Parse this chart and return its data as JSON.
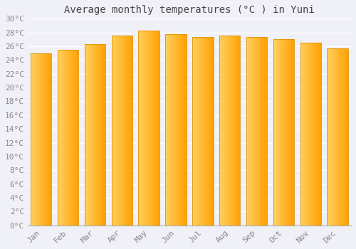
{
  "title": "Average monthly temperatures (°C ) in Yuni",
  "months": [
    "Jan",
    "Feb",
    "Mar",
    "Apr",
    "May",
    "Jun",
    "Jul",
    "Aug",
    "Sep",
    "Oct",
    "Nov",
    "Dec"
  ],
  "values": [
    25.0,
    25.5,
    26.3,
    27.5,
    28.3,
    27.8,
    27.3,
    27.5,
    27.3,
    27.0,
    26.5,
    25.7
  ],
  "bar_color_left": "#FFD060",
  "bar_color_right": "#FFA000",
  "bar_edge_color": "#E09000",
  "background_color": "#F0F0F8",
  "plot_bg_color": "#F0F0F8",
  "grid_color": "#FFFFFF",
  "ylim": [
    0,
    30
  ],
  "ytick_step": 2,
  "title_fontsize": 10,
  "tick_fontsize": 8,
  "tick_color": "#888888",
  "title_color": "#444444"
}
